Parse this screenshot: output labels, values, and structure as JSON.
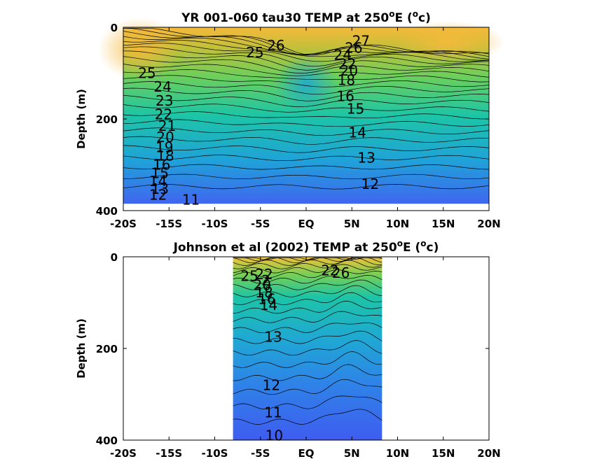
{
  "chart_data": [
    {
      "type": "heatmap",
      "title": "YR 001-060 tau30 TEMP at 250",
      "title_super": "o",
      "title_tail": "E (",
      "title_unit_super": "o",
      "title_unit": "c)",
      "ylabel": "Depth (m)",
      "xlim": [
        -20,
        20
      ],
      "ylim": [
        0,
        400
      ],
      "y_reversed": true,
      "data_extent": {
        "x": [
          -20,
          20
        ],
        "y": [
          0,
          385
        ]
      },
      "xticks": [
        "-20S",
        "-15S",
        "-10S",
        "-5S",
        "EQ",
        "5N",
        "10N",
        "15N",
        "20N"
      ],
      "yticks": [
        "0",
        "200",
        "400"
      ],
      "colormap": [
        "#4066f0",
        "#1fa3d8",
        "#1dc5a6",
        "#6ccf5c",
        "#c0c03a",
        "#f6b93b"
      ],
      "contour_labels": [
        {
          "text": "25",
          "x": -17.4,
          "y": 100
        },
        {
          "text": "25",
          "x": -5.6,
          "y": 55
        },
        {
          "text": "26",
          "x": -3.3,
          "y": 40
        },
        {
          "text": "27",
          "x": 6.0,
          "y": 30
        },
        {
          "text": "26",
          "x": 5.2,
          "y": 45
        },
        {
          "text": "24",
          "x": 4.0,
          "y": 60
        },
        {
          "text": "22",
          "x": 4.5,
          "y": 80
        },
        {
          "text": "20",
          "x": 4.7,
          "y": 95
        },
        {
          "text": "18",
          "x": 4.4,
          "y": 115
        },
        {
          "text": "16",
          "x": 4.3,
          "y": 150
        },
        {
          "text": "15",
          "x": 5.4,
          "y": 178
        },
        {
          "text": "14",
          "x": 5.6,
          "y": 230
        },
        {
          "text": "13",
          "x": 6.6,
          "y": 285
        },
        {
          "text": "12",
          "x": 7.0,
          "y": 342
        },
        {
          "text": "24",
          "x": -15.7,
          "y": 130
        },
        {
          "text": "23",
          "x": -15.5,
          "y": 160
        },
        {
          "text": "22",
          "x": -15.6,
          "y": 190
        },
        {
          "text": "21",
          "x": -15.2,
          "y": 215
        },
        {
          "text": "20",
          "x": -15.4,
          "y": 240
        },
        {
          "text": "19",
          "x": -15.5,
          "y": 262
        },
        {
          "text": "18",
          "x": -15.4,
          "y": 280
        },
        {
          "text": "16",
          "x": -15.8,
          "y": 300
        },
        {
          "text": "15",
          "x": -16.0,
          "y": 318
        },
        {
          "text": "14",
          "x": -16.2,
          "y": 336
        },
        {
          "text": "13",
          "x": -16.0,
          "y": 353
        },
        {
          "text": "12",
          "x": -16.2,
          "y": 366
        },
        {
          "text": "11",
          "x": -12.6,
          "y": 376
        }
      ]
    },
    {
      "type": "heatmap",
      "title": "Johnson et al (2002) TEMP at 250",
      "title_super": "o",
      "title_tail": "E (",
      "title_unit_super": "o",
      "title_unit": "c)",
      "ylabel": "Depth (m)",
      "xlim": [
        -20,
        20
      ],
      "ylim": [
        0,
        400
      ],
      "y_reversed": true,
      "data_extent": {
        "x": [
          -8,
          8.3
        ],
        "y": [
          0,
          400
        ]
      },
      "xticks": [
        "-20S",
        "-15S",
        "-10S",
        "-5S",
        "EQ",
        "5N",
        "10N",
        "15N",
        "20N"
      ],
      "yticks": [
        "0",
        "200",
        "400"
      ],
      "colormap": [
        "#3f5cf0",
        "#2f82e8",
        "#1fa8d4",
        "#1dc4a7",
        "#74cf57",
        "#f4c238"
      ],
      "contour_labels": [
        {
          "text": "25",
          "x": -6.2,
          "y": 42
        },
        {
          "text": "22",
          "x": -4.6,
          "y": 38
        },
        {
          "text": "2",
          "x": -4.4,
          "y": 52
        },
        {
          "text": "20",
          "x": -4.8,
          "y": 62
        },
        {
          "text": "18",
          "x": -4.6,
          "y": 78
        },
        {
          "text": "16",
          "x": -4.3,
          "y": 92
        },
        {
          "text": "14",
          "x": -4.1,
          "y": 105
        },
        {
          "text": "22",
          "x": 2.6,
          "y": 30
        },
        {
          "text": "26",
          "x": 3.8,
          "y": 35
        },
        {
          "text": "13",
          "x": -3.6,
          "y": 175
        },
        {
          "text": "12",
          "x": -3.8,
          "y": 280
        },
        {
          "text": "11",
          "x": -3.6,
          "y": 340
        },
        {
          "text": "10",
          "x": -3.5,
          "y": 390
        }
      ]
    }
  ]
}
